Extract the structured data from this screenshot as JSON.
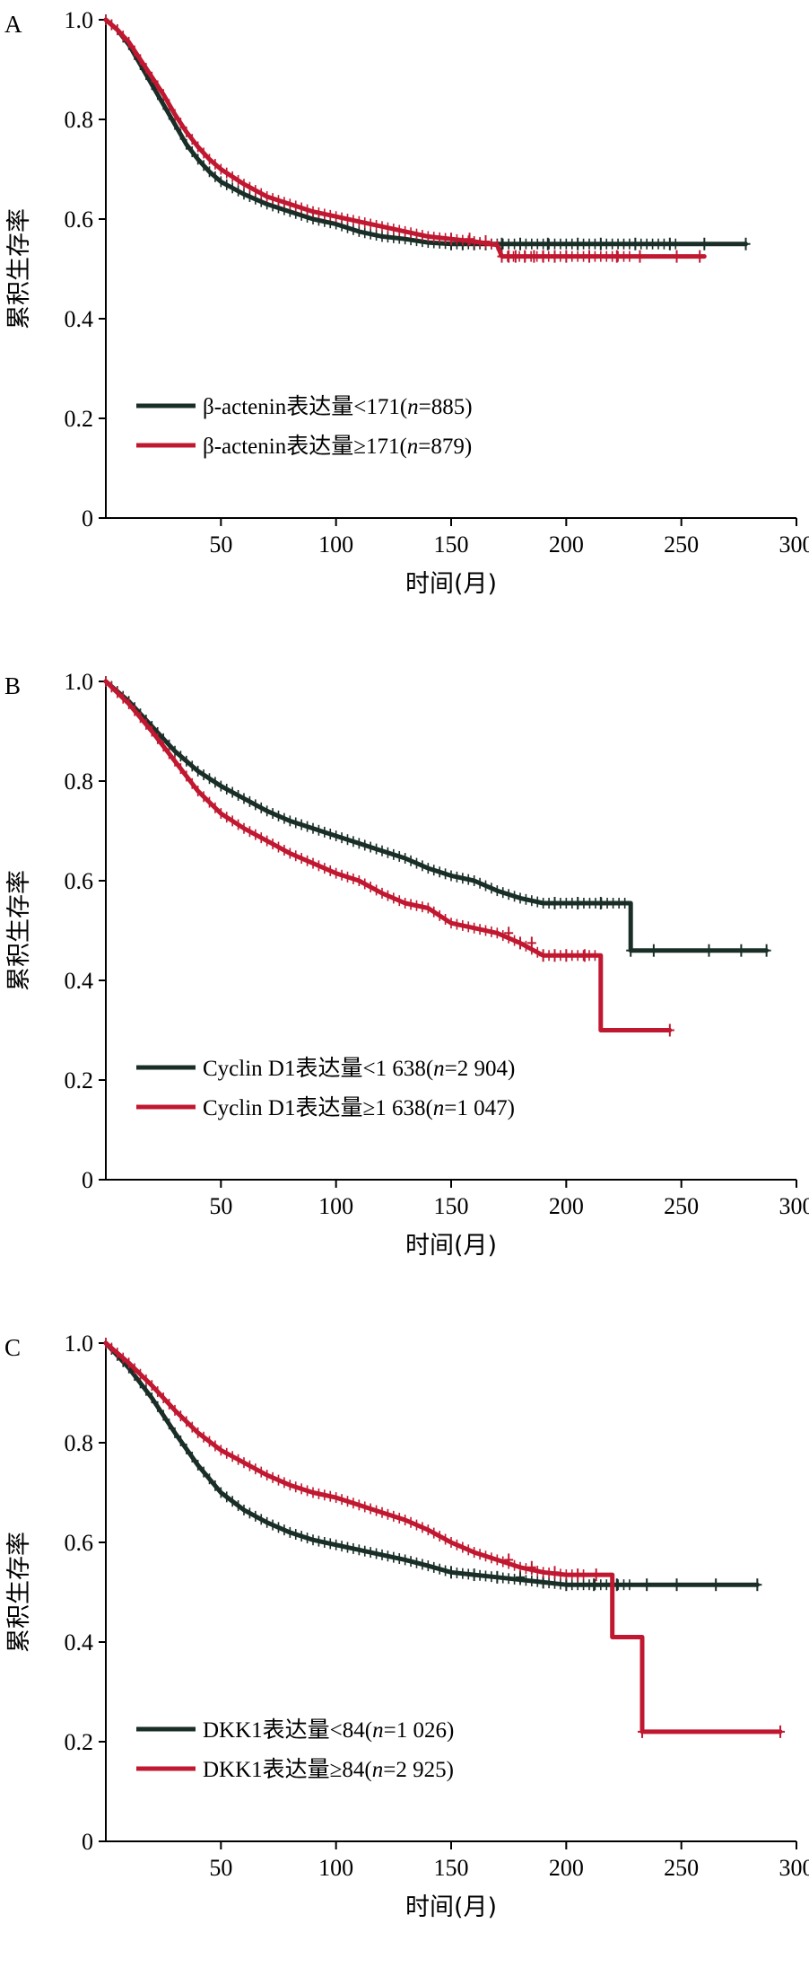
{
  "chart_data": [
    {
      "type": "line",
      "panel_label": "A",
      "xlabel": "时间(月)",
      "ylabel": "累积生存率",
      "xlim": [
        0,
        300
      ],
      "ylim": [
        0,
        1.0
      ],
      "x_ticks": [
        "50",
        "100",
        "150",
        "200",
        "250",
        "300"
      ],
      "y_ticks": [
        "0",
        "0.2",
        "0.4",
        "0.6",
        "0.8",
        "1.0"
      ],
      "legend_position": "bottom-left",
      "series": [
        {
          "name": "β-actenin表达量<171(n=885)",
          "color": "#1a2e28",
          "points": [
            [
              0,
              1.0
            ],
            [
              5,
              0.98
            ],
            [
              10,
              0.95
            ],
            [
              15,
              0.91
            ],
            [
              20,
              0.87
            ],
            [
              25,
              0.83
            ],
            [
              30,
              0.79
            ],
            [
              35,
              0.75
            ],
            [
              40,
              0.72
            ],
            [
              45,
              0.695
            ],
            [
              50,
              0.675
            ],
            [
              60,
              0.65
            ],
            [
              70,
              0.63
            ],
            [
              80,
              0.615
            ],
            [
              90,
              0.6
            ],
            [
              100,
              0.59
            ],
            [
              110,
              0.575
            ],
            [
              120,
              0.565
            ],
            [
              130,
              0.56
            ],
            [
              140,
              0.553
            ],
            [
              150,
              0.55
            ],
            [
              200,
              0.55
            ],
            [
              250,
              0.55
            ],
            [
              278,
              0.55
            ]
          ],
          "censor_x": [
            150,
            155,
            160,
            165,
            172,
            180,
            192,
            205,
            215,
            230,
            245,
            260,
            278
          ]
        },
        {
          "name": "β-actenin表达量≥171(n=879)",
          "color": "#c01830",
          "points": [
            [
              0,
              1.0
            ],
            [
              5,
              0.98
            ],
            [
              10,
              0.955
            ],
            [
              15,
              0.92
            ],
            [
              20,
              0.885
            ],
            [
              25,
              0.85
            ],
            [
              30,
              0.81
            ],
            [
              35,
              0.775
            ],
            [
              40,
              0.745
            ],
            [
              45,
              0.72
            ],
            [
              50,
              0.7
            ],
            [
              60,
              0.67
            ],
            [
              70,
              0.645
            ],
            [
              80,
              0.63
            ],
            [
              90,
              0.615
            ],
            [
              100,
              0.605
            ],
            [
              110,
              0.595
            ],
            [
              120,
              0.585
            ],
            [
              130,
              0.575
            ],
            [
              140,
              0.565
            ],
            [
              150,
              0.56
            ],
            [
              160,
              0.555
            ],
            [
              170,
              0.548
            ],
            [
              172,
              0.525
            ],
            [
              200,
              0.525
            ],
            [
              230,
              0.525
            ],
            [
              260,
              0.525
            ]
          ],
          "censor_x": [
            150,
            158,
            165,
            172,
            175,
            178,
            182,
            186,
            190,
            195,
            200,
            210,
            222,
            232,
            248,
            258
          ]
        }
      ]
    },
    {
      "type": "line",
      "panel_label": "B",
      "xlabel": "时间(月)",
      "ylabel": "累积生存率",
      "xlim": [
        0,
        300
      ],
      "ylim": [
        0,
        1.0
      ],
      "x_ticks": [
        "50",
        "100",
        "150",
        "200",
        "250",
        "300"
      ],
      "y_ticks": [
        "0",
        "0.2",
        "0.4",
        "0.6",
        "0.8",
        "1.0"
      ],
      "legend_position": "bottom-left",
      "series": [
        {
          "name": "Cyclin D1表达量<1 638(n=2 904)",
          "color": "#1a2e28",
          "points": [
            [
              0,
              1.0
            ],
            [
              10,
              0.96
            ],
            [
              20,
              0.91
            ],
            [
              30,
              0.86
            ],
            [
              40,
              0.82
            ],
            [
              50,
              0.79
            ],
            [
              60,
              0.765
            ],
            [
              70,
              0.74
            ],
            [
              80,
              0.72
            ],
            [
              90,
              0.705
            ],
            [
              100,
              0.69
            ],
            [
              110,
              0.675
            ],
            [
              120,
              0.66
            ],
            [
              130,
              0.645
            ],
            [
              140,
              0.625
            ],
            [
              150,
              0.61
            ],
            [
              160,
              0.6
            ],
            [
              170,
              0.58
            ],
            [
              180,
              0.565
            ],
            [
              190,
              0.555
            ],
            [
              200,
              0.555
            ],
            [
              228,
              0.555
            ],
            [
              228,
              0.46
            ],
            [
              250,
              0.46
            ],
            [
              287,
              0.46
            ]
          ],
          "censor_x": [
            195,
            205,
            215,
            228,
            238,
            262,
            276,
            287
          ]
        },
        {
          "name": "Cyclin D1表达量≥1 638(n=1 047)",
          "color": "#c01830",
          "points": [
            [
              0,
              1.0
            ],
            [
              10,
              0.955
            ],
            [
              20,
              0.9
            ],
            [
              30,
              0.84
            ],
            [
              40,
              0.78
            ],
            [
              50,
              0.735
            ],
            [
              60,
              0.705
            ],
            [
              70,
              0.68
            ],
            [
              80,
              0.655
            ],
            [
              90,
              0.635
            ],
            [
              100,
              0.615
            ],
            [
              110,
              0.6
            ],
            [
              120,
              0.575
            ],
            [
              130,
              0.555
            ],
            [
              140,
              0.545
            ],
            [
              150,
              0.515
            ],
            [
              160,
              0.505
            ],
            [
              170,
              0.495
            ],
            [
              180,
              0.475
            ],
            [
              190,
              0.45
            ],
            [
              200,
              0.45
            ],
            [
              215,
              0.45
            ],
            [
              215,
              0.3
            ],
            [
              230,
              0.3
            ],
            [
              245,
              0.3
            ]
          ],
          "censor_x": [
            175,
            180,
            185,
            190,
            195,
            200,
            208,
            245
          ]
        }
      ]
    },
    {
      "type": "line",
      "panel_label": "C",
      "xlabel": "时间(月)",
      "ylabel": "累积生存率",
      "xlim": [
        0,
        300
      ],
      "ylim": [
        0,
        1.0
      ],
      "x_ticks": [
        "50",
        "100",
        "150",
        "200",
        "250",
        "300"
      ],
      "y_ticks": [
        "0",
        "0.2",
        "0.4",
        "0.6",
        "0.8",
        "1.0"
      ],
      "legend_position": "bottom-left",
      "series": [
        {
          "name": "DKK1表达量<84(n=1 026)",
          "color": "#1a2e28",
          "points": [
            [
              0,
              1.0
            ],
            [
              10,
              0.95
            ],
            [
              20,
              0.89
            ],
            [
              30,
              0.82
            ],
            [
              40,
              0.755
            ],
            [
              50,
              0.7
            ],
            [
              60,
              0.665
            ],
            [
              70,
              0.64
            ],
            [
              80,
              0.62
            ],
            [
              90,
              0.605
            ],
            [
              100,
              0.595
            ],
            [
              110,
              0.585
            ],
            [
              120,
              0.575
            ],
            [
              130,
              0.565
            ],
            [
              140,
              0.553
            ],
            [
              150,
              0.54
            ],
            [
              160,
              0.535
            ],
            [
              170,
              0.53
            ],
            [
              190,
              0.52
            ],
            [
              200,
              0.515
            ],
            [
              230,
              0.515
            ],
            [
              260,
              0.515
            ],
            [
              283,
              0.515
            ]
          ],
          "censor_x": [
            150,
            160,
            170,
            180,
            190,
            200,
            212,
            222,
            235,
            248,
            265,
            283
          ]
        },
        {
          "name": "DKK1表达量≥84(n=2 925)",
          "color": "#c01830",
          "points": [
            [
              0,
              1.0
            ],
            [
              10,
              0.96
            ],
            [
              20,
              0.915
            ],
            [
              30,
              0.865
            ],
            [
              40,
              0.82
            ],
            [
              50,
              0.785
            ],
            [
              60,
              0.76
            ],
            [
              70,
              0.735
            ],
            [
              80,
              0.715
            ],
            [
              90,
              0.7
            ],
            [
              100,
              0.69
            ],
            [
              110,
              0.675
            ],
            [
              120,
              0.66
            ],
            [
              130,
              0.645
            ],
            [
              140,
              0.625
            ],
            [
              150,
              0.6
            ],
            [
              160,
              0.58
            ],
            [
              170,
              0.565
            ],
            [
              180,
              0.55
            ],
            [
              190,
              0.54
            ],
            [
              200,
              0.535
            ],
            [
              210,
              0.535
            ],
            [
              220,
              0.535
            ],
            [
              220,
              0.41
            ],
            [
              233,
              0.41
            ],
            [
              233,
              0.22
            ],
            [
              260,
              0.22
            ],
            [
              293,
              0.22
            ]
          ],
          "censor_x": [
            175,
            185,
            195,
            205,
            213,
            233,
            293
          ]
        }
      ]
    }
  ]
}
